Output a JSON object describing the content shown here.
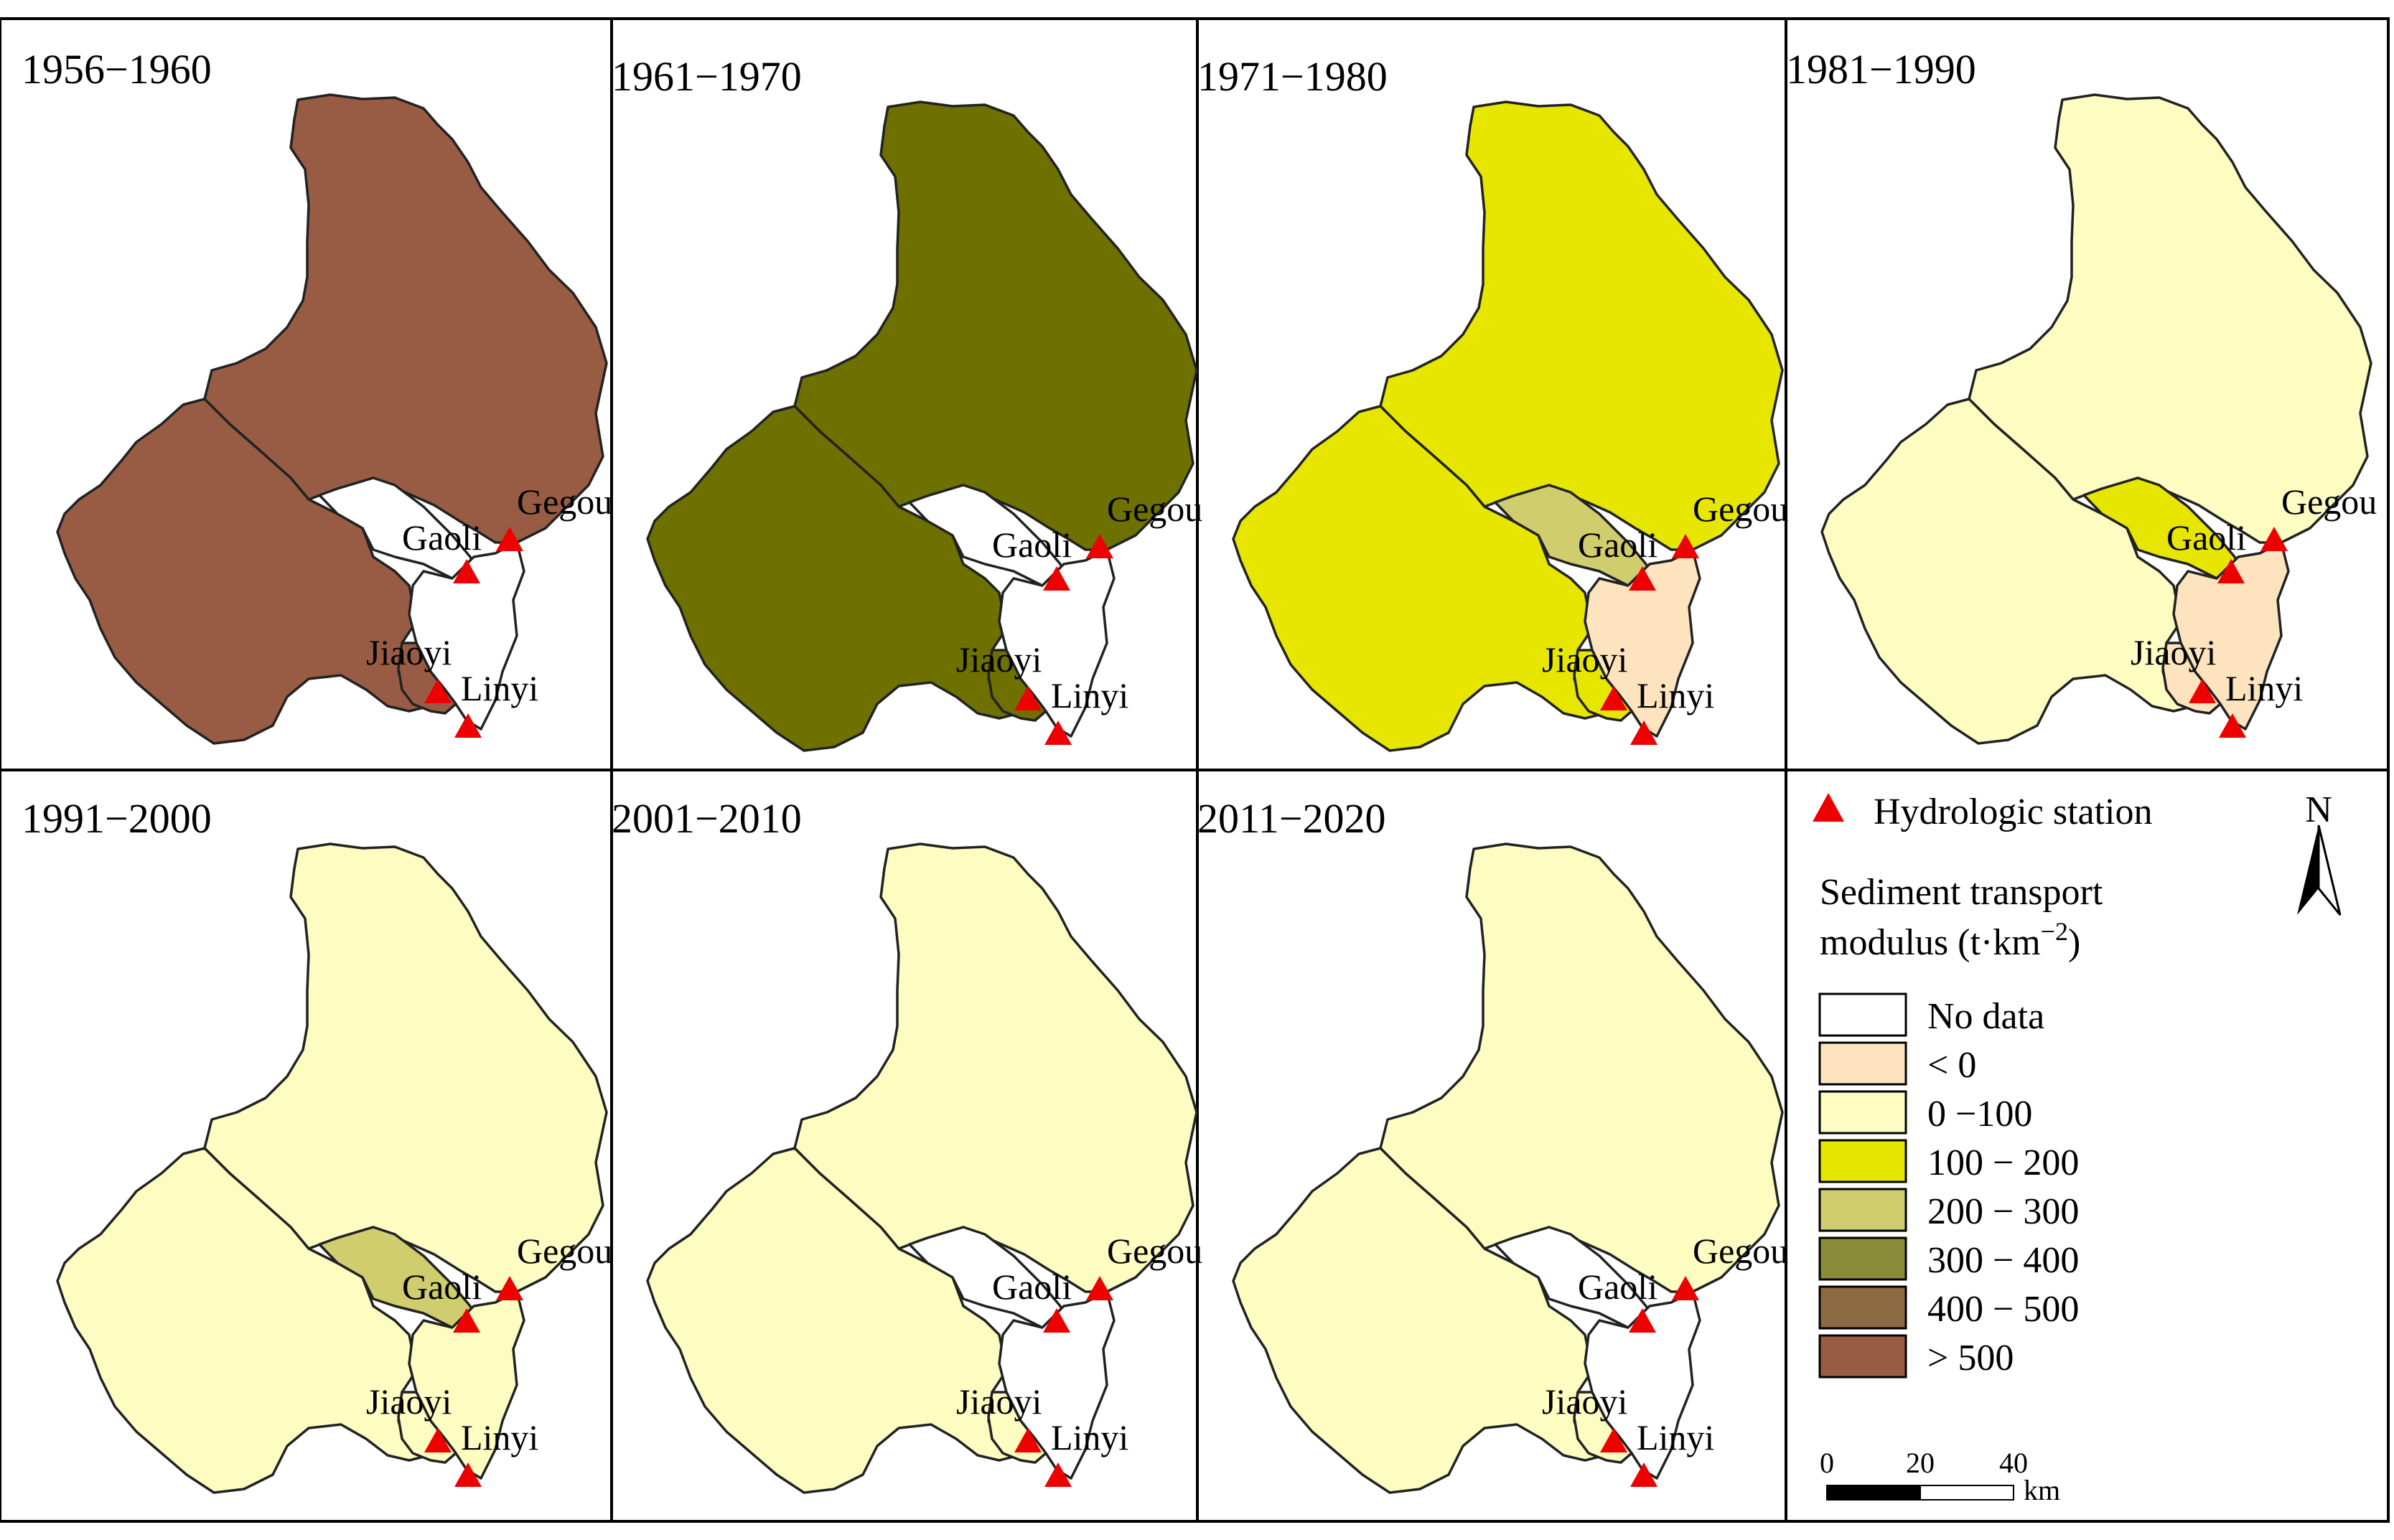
{
  "panels": [
    {
      "title": "1956−1960",
      "colors": {
        "upper": "#985c45",
        "west": "#985c45",
        "gaoli": "#ffffff",
        "linyi": "#ffffff",
        "jiaoyi": "#985c45"
      }
    },
    {
      "title": "1961−1970",
      "colors": {
        "upper": "#6e7000",
        "west": "#6e7000",
        "gaoli": "#ffffff",
        "linyi": "#ffffff",
        "jiaoyi": "#6e7000"
      }
    },
    {
      "title": "1971−1980",
      "colors": {
        "upper": "#e6e600",
        "west": "#e6e600",
        "gaoli": "#cfcd6e",
        "linyi": "#fde4bf",
        "jiaoyi": "#e6e600"
      }
    },
    {
      "title": "1981−1990",
      "colors": {
        "upper": "#fdfdc2",
        "west": "#fdfdc2",
        "gaoli": "#e6e600",
        "linyi": "#fde4bf",
        "jiaoyi": "#fde4bf"
      }
    },
    {
      "title": "1991−2000",
      "colors": {
        "upper": "#fdfdc2",
        "west": "#fdfdc2",
        "gaoli": "#cfcd6e",
        "linyi": "#fdfdc2",
        "jiaoyi": "#fdfdc2"
      }
    },
    {
      "title": "2001−2010",
      "colors": {
        "upper": "#fdfdc2",
        "west": "#fdfdc2",
        "gaoli": "#ffffff",
        "linyi": "#ffffff",
        "jiaoyi": "#fdfdc2"
      }
    },
    {
      "title": "2011−2020",
      "colors": {
        "upper": "#fdfdc2",
        "west": "#fdfdc2",
        "gaoli": "#ffffff",
        "linyi": "#ffffff",
        "jiaoyi": "#fdfdc2"
      }
    }
  ],
  "stations": {
    "gegou": "Gegou",
    "gaoli": "Gaoli",
    "jiaoyi": "Jiaoyi",
    "linyi": "Linyi"
  },
  "legend": {
    "station_label": "Hydrologic station",
    "title_line1": "Sediment transport",
    "title_line2_prefix": "modulus (t·km",
    "title_line2_exp": "−2",
    "title_line2_suffix": ")",
    "north": "N",
    "classes": [
      {
        "label": "No data",
        "color": "#ffffff"
      },
      {
        "label": "< 0",
        "color": "#fde4bf"
      },
      {
        "label": "0 −100",
        "color": "#fdfdc2"
      },
      {
        "label": "100 − 200",
        "color": "#e6e600"
      },
      {
        "label": "200 − 300",
        "color": "#cfcd6e"
      },
      {
        "label": "300 − 400",
        "color": "#8a8c3a"
      },
      {
        "label": "400 − 500",
        "color": "#8c6a42"
      },
      {
        "label": "> 500",
        "color": "#985c45"
      }
    ],
    "scale": {
      "ticks": [
        "0",
        "20",
        "40"
      ],
      "unit": "km"
    }
  },
  "colors": {
    "station": "#ee0000",
    "border": "#000000"
  }
}
